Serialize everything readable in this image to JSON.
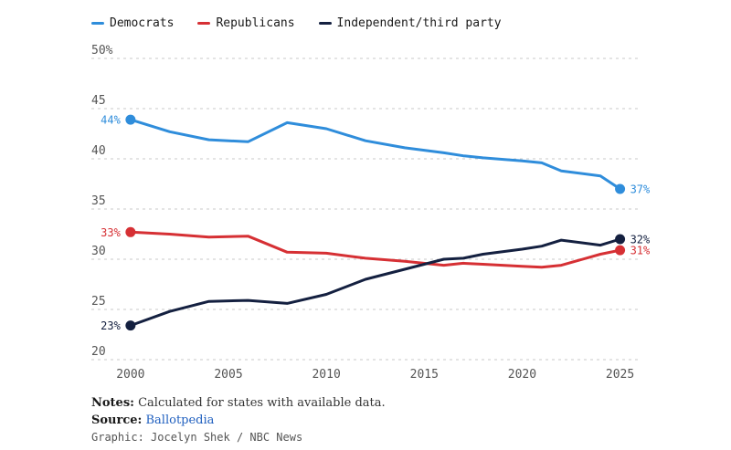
{
  "chart_data": {
    "type": "line",
    "title": "",
    "xlabel": "",
    "ylabel": "",
    "ylim": [
      20,
      50
    ],
    "xlim": [
      1998,
      2026
    ],
    "y_ticks": [
      20,
      25,
      30,
      35,
      40,
      45,
      50
    ],
    "y_tick_labels": [
      "20",
      "25",
      "30",
      "35",
      "40",
      "45",
      "50%"
    ],
    "x_ticks": [
      2000,
      2005,
      2010,
      2015,
      2020,
      2025
    ],
    "x_tick_labels": [
      "2000",
      "2005",
      "2010",
      "2015",
      "2020",
      "2025"
    ],
    "grid": "horizontal dashed",
    "legend": "top-left",
    "series": [
      {
        "name": "Democrats",
        "color": "#2f8ddb",
        "x": [
          2000,
          2002,
          2004,
          2006,
          2008,
          2010,
          2012,
          2014,
          2016,
          2017,
          2018,
          2020,
          2021,
          2022,
          2024,
          2025
        ],
        "values": [
          43.9,
          42.7,
          41.9,
          41.7,
          43.6,
          43.0,
          41.8,
          41.1,
          40.6,
          40.3,
          40.1,
          39.8,
          39.6,
          38.8,
          38.3,
          37.0
        ],
        "end_label": "37%",
        "start_label": "44%"
      },
      {
        "name": "Republicans",
        "color": "#d63034",
        "x": [
          2000,
          2002,
          2004,
          2006,
          2008,
          2010,
          2012,
          2014,
          2016,
          2017,
          2018,
          2020,
          2021,
          2022,
          2024,
          2025
        ],
        "values": [
          32.7,
          32.5,
          32.2,
          32.3,
          30.7,
          30.6,
          30.1,
          29.8,
          29.4,
          29.6,
          29.5,
          29.3,
          29.2,
          29.4,
          30.5,
          30.9
        ],
        "end_label": "31%",
        "start_label": "33%"
      },
      {
        "name": "Independent/third party",
        "color": "#142040",
        "x": [
          2000,
          2002,
          2004,
          2006,
          2008,
          2010,
          2012,
          2014,
          2016,
          2017,
          2018,
          2020,
          2021,
          2022,
          2024,
          2025
        ],
        "values": [
          23.4,
          24.8,
          25.8,
          25.9,
          25.6,
          26.5,
          28.0,
          29.0,
          30.0,
          30.1,
          30.5,
          31.0,
          31.3,
          31.9,
          31.4,
          32.0
        ],
        "end_label": "32%",
        "start_label": "23%"
      }
    ]
  },
  "footer": {
    "notes_label": "Notes:",
    "notes_text": "Calculated for states with available data.",
    "source_label": "Source:",
    "source_text": "Ballotpedia",
    "graphic_text": "Graphic: Jocelyn Shek / NBC News"
  }
}
